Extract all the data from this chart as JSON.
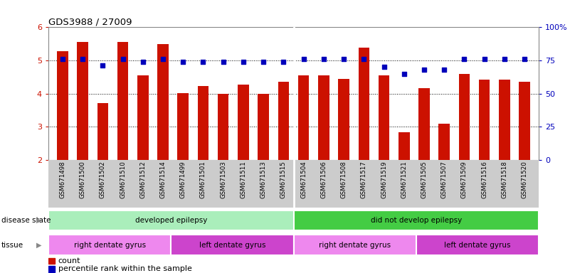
{
  "title": "GDS3988 / 27009",
  "samples": [
    "GSM671498",
    "GSM671500",
    "GSM671502",
    "GSM671510",
    "GSM671512",
    "GSM671514",
    "GSM671499",
    "GSM671501",
    "GSM671503",
    "GSM671511",
    "GSM671513",
    "GSM671515",
    "GSM671504",
    "GSM671506",
    "GSM671508",
    "GSM671517",
    "GSM671519",
    "GSM671521",
    "GSM671505",
    "GSM671507",
    "GSM671509",
    "GSM671516",
    "GSM671518",
    "GSM671520"
  ],
  "count_values": [
    5.28,
    5.55,
    3.7,
    5.55,
    4.55,
    5.5,
    4.02,
    4.22,
    3.98,
    4.27,
    4.0,
    4.35,
    4.55,
    4.55,
    4.45,
    5.38,
    4.55,
    2.82,
    4.17,
    3.08,
    4.6,
    4.42,
    4.42,
    4.35
  ],
  "percentile_values": [
    76,
    76,
    71,
    76,
    74,
    76,
    74,
    74,
    74,
    74,
    74,
    74,
    76,
    76,
    76,
    76,
    70,
    65,
    68,
    68,
    76,
    76,
    76,
    76
  ],
  "ylim_left": [
    2,
    6
  ],
  "ylim_right": [
    0,
    100
  ],
  "yticks_left": [
    2,
    3,
    4,
    5,
    6
  ],
  "yticks_right": [
    0,
    25,
    50,
    75,
    100
  ],
  "bar_color": "#cc1100",
  "dot_color": "#0000bb",
  "bar_width": 0.55,
  "disease_state_groups": [
    {
      "label": "developed epilepsy",
      "start": 0,
      "end": 12,
      "color": "#aaeebb"
    },
    {
      "label": "did not develop epilepsy",
      "start": 12,
      "end": 24,
      "color": "#44cc44"
    }
  ],
  "tissue_groups": [
    {
      "label": "right dentate gyrus",
      "start": 0,
      "end": 6,
      "color": "#ee88ee"
    },
    {
      "label": "left dentate gyrus",
      "start": 6,
      "end": 12,
      "color": "#cc44cc"
    },
    {
      "label": "right dentate gyrus",
      "start": 12,
      "end": 18,
      "color": "#ee88ee"
    },
    {
      "label": "left dentate gyrus",
      "start": 18,
      "end": 24,
      "color": "#cc44cc"
    }
  ],
  "disease_state_label": "disease state",
  "tissue_label": "tissue",
  "legend_count_label": "count",
  "legend_percentile_label": "percentile rank within the sample",
  "dotted_grid_color": "#000000",
  "axis_color_left": "#cc1100",
  "axis_color_right": "#0000bb",
  "xtick_bg_color": "#cccccc",
  "fig_bg": "#ffffff"
}
